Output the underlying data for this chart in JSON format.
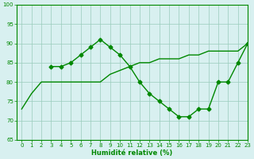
{
  "x": [
    0,
    1,
    2,
    3,
    4,
    5,
    6,
    7,
    8,
    9,
    10,
    11,
    12,
    13,
    14,
    15,
    16,
    17,
    18,
    19,
    20,
    21,
    22,
    23
  ],
  "line2_x": [
    3,
    4,
    5,
    6,
    7,
    8,
    9,
    10,
    11,
    12,
    13,
    14,
    15,
    16,
    17,
    18,
    19,
    20,
    21,
    22,
    23
  ],
  "line2_y": [
    84,
    84,
    85,
    87,
    89,
    91,
    89,
    87,
    84,
    80,
    77,
    75,
    73,
    71,
    71,
    73,
    73,
    80,
    80,
    85,
    90
  ],
  "smooth_line_x": [
    0,
    1,
    2,
    3,
    4,
    5,
    6,
    7,
    8,
    9,
    10,
    11,
    12,
    13,
    14,
    15,
    16,
    17,
    18,
    19,
    20,
    21,
    22,
    23
  ],
  "smooth_line_y": [
    73,
    77,
    80,
    80,
    80,
    80,
    80,
    80,
    80,
    82,
    83,
    84,
    85,
    85,
    86,
    86,
    86,
    87,
    87,
    88,
    88,
    88,
    88,
    90
  ],
  "line_color": "#008800",
  "bg_color": "#d8f0f0",
  "grid_color": "#99ccbb",
  "xlabel": "Humidité relative (%)",
  "ylim": [
    65,
    100
  ],
  "xlim": [
    -0.5,
    23
  ],
  "yticks": [
    65,
    70,
    75,
    80,
    85,
    90,
    95,
    100
  ],
  "xticks": [
    0,
    1,
    2,
    3,
    4,
    5,
    6,
    7,
    8,
    9,
    10,
    11,
    12,
    13,
    14,
    15,
    16,
    17,
    18,
    19,
    20,
    21,
    22,
    23
  ]
}
